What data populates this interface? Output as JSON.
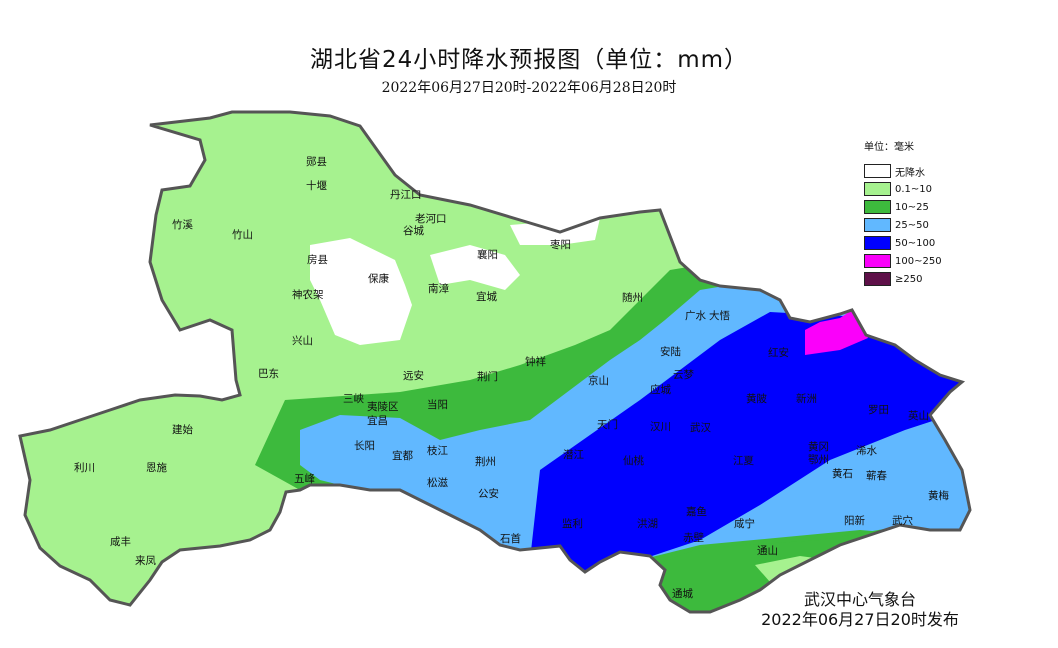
{
  "title": "湖北省24小时降水预报图（单位：mm）",
  "subtitle": "2022年06月27日20时-2022年06月28日20时",
  "legend": {
    "title": "单位：毫米",
    "items": [
      {
        "label": "无降水",
        "color": "#ffffff"
      },
      {
        "label": "0.1~10",
        "color": "#a6f28f"
      },
      {
        "label": "10~25",
        "color": "#3dba3d"
      },
      {
        "label": "25~50",
        "color": "#61b8ff"
      },
      {
        "label": "50~100",
        "color": "#0000fe"
      },
      {
        "label": "100~250",
        "color": "#fa00fa"
      },
      {
        "label": "≥250",
        "color": "#5e1048"
      }
    ]
  },
  "cities": [
    "郧县",
    "十堰",
    "丹江口",
    "老河口",
    "谷城",
    "竹溪",
    "竹山",
    "房县",
    "保康",
    "襄阳",
    "枣阳",
    "南漳",
    "宜城",
    "神农架",
    "兴山",
    "巴东",
    "远安",
    "荆门",
    "钟祥",
    "随州",
    "广水",
    "大悟",
    "安陆",
    "京山",
    "应城",
    "云梦",
    "三峡",
    "夷陵区",
    "宜昌",
    "当阳",
    "建始",
    "利川",
    "恩施",
    "长阳",
    "宜都",
    "枝江",
    "五峰",
    "松滋",
    "荆州",
    "公安",
    "石首",
    "咸丰",
    "来凤",
    "天门",
    "汉川",
    "武汉",
    "潜江",
    "仙桃",
    "江夏",
    "嘉鱼",
    "监利",
    "洪湖",
    "赤壁",
    "咸宁",
    "通山",
    "通城",
    "红安",
    "黄陂",
    "新洲",
    "罗田",
    "英山",
    "黄冈",
    "鄂州",
    "黄石",
    "浠水",
    "蕲春",
    "黄梅",
    "阳新",
    "武穴"
  ],
  "footer": {
    "issuer": "武汉中心气象台",
    "issued": "2022年06月27日20时发布"
  }
}
